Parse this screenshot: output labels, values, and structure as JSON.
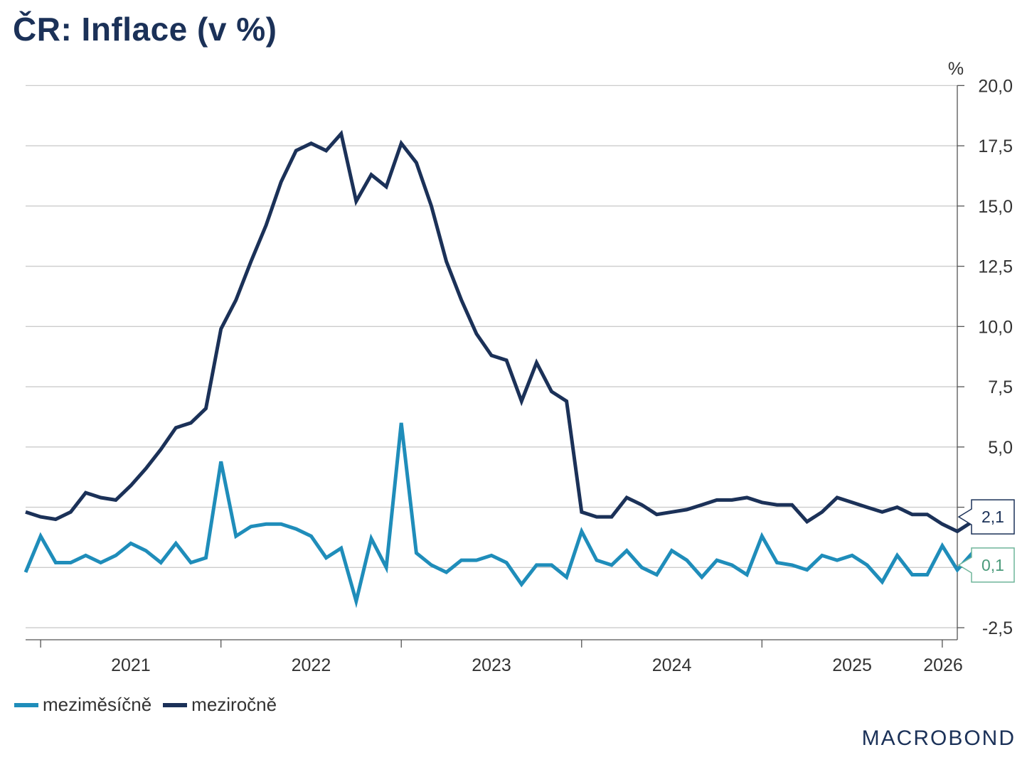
{
  "title": "ČR: Inflace (v %)",
  "brand": "MACROBOND",
  "colors": {
    "mom": "#1f8dba",
    "yoy": "#1b3158",
    "tag_mom_border": "#6fb59a",
    "tag_mom_text": "#4a9a7a",
    "grid": "#cccccc"
  },
  "chart_data": {
    "type": "line",
    "unit": "%",
    "x_start": "2020-12",
    "xlim": [
      "2020-12",
      "2026-02"
    ],
    "x_ticks": [
      "2021",
      "2022",
      "2023",
      "2024",
      "2025",
      "2026"
    ],
    "ylim": [
      -3.0,
      20.6
    ],
    "y_ticks": [
      "20,0",
      "17,5",
      "15,0",
      "12,5",
      "10,0",
      "7,5",
      "5,0",
      "",
      "",
      "-2,5"
    ],
    "y_tick_values": [
      20.0,
      17.5,
      15.0,
      12.5,
      10.0,
      7.5,
      5.0,
      2.5,
      0.0,
      -2.5
    ],
    "grid": true,
    "legend_position": "bottom-left",
    "series": [
      {
        "name": "meziměsíčně",
        "color": "#1f8dba",
        "end_label": "0,1",
        "values": [
          -0.2,
          1.3,
          0.2,
          0.2,
          0.5,
          0.2,
          0.5,
          1.0,
          0.7,
          0.2,
          1.0,
          0.2,
          0.4,
          4.4,
          1.3,
          1.7,
          1.8,
          1.8,
          1.6,
          1.3,
          0.4,
          0.8,
          -1.4,
          1.2,
          0.0,
          6.0,
          0.6,
          0.1,
          -0.2,
          0.3,
          0.3,
          0.5,
          0.2,
          -0.7,
          0.1,
          0.1,
          -0.4,
          1.5,
          0.3,
          0.1,
          0.7,
          0.0,
          -0.3,
          0.7,
          0.3,
          -0.4,
          0.3,
          0.1,
          -0.3,
          1.3,
          0.2,
          0.1,
          -0.1,
          0.5,
          0.3,
          0.5,
          0.1,
          -0.6,
          0.5,
          -0.3,
          -0.3,
          0.9,
          -0.1,
          0.6,
          0.5,
          0.1
        ]
      },
      {
        "name": "meziročně",
        "color": "#1b3158",
        "end_label": "2,1",
        "values": [
          2.3,
          2.1,
          2.0,
          2.3,
          3.1,
          2.9,
          2.8,
          3.4,
          4.1,
          4.9,
          5.8,
          6.0,
          6.6,
          9.9,
          11.1,
          12.7,
          14.2,
          16.0,
          17.3,
          17.6,
          17.3,
          18.0,
          15.2,
          16.3,
          15.8,
          17.6,
          16.8,
          15.0,
          12.7,
          11.1,
          9.7,
          8.8,
          8.6,
          6.9,
          8.5,
          7.3,
          6.9,
          2.3,
          2.1,
          2.1,
          2.9,
          2.6,
          2.2,
          2.3,
          2.4,
          2.6,
          2.8,
          2.8,
          2.9,
          2.7,
          2.6,
          2.6,
          1.9,
          2.3,
          2.9,
          2.7,
          2.5,
          2.3,
          2.5,
          2.2,
          2.2,
          1.8,
          1.5,
          1.9,
          2.5,
          2.1
        ]
      }
    ]
  }
}
